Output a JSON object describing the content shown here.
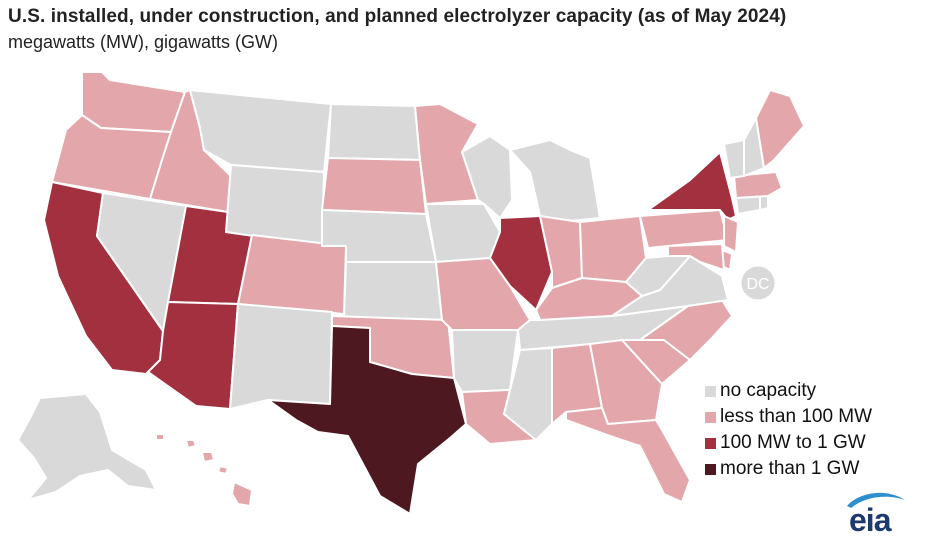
{
  "title": "U.S. installed, under construction, and planned electrolyzer capacity (as of May 2024)",
  "subtitle": "megawatts (MW), gigawatts (GW)",
  "colors": {
    "none": "#d9d9d9",
    "low": "#e3a6ab",
    "mid": "#a3303f",
    "high": "#4e1820",
    "border": "#ffffff",
    "logo": "#1d3a6e",
    "logo_accent": "#2e8fcf"
  },
  "legend": [
    {
      "key": "none",
      "label": "no capacity"
    },
    {
      "key": "low",
      "label": "less than 100 MW"
    },
    {
      "key": "mid",
      "label": "100 MW to 1 GW"
    },
    {
      "key": "high",
      "label": "more than 1 GW"
    }
  ],
  "states": {
    "WA": "low",
    "OR": "low",
    "CA": "mid",
    "ID": "low",
    "NV": "none",
    "UT": "mid",
    "AZ": "mid",
    "MT": "none",
    "WY": "none",
    "CO": "low",
    "NM": "none",
    "ND": "none",
    "SD": "low",
    "NE": "none",
    "KS": "none",
    "OK": "low",
    "TX": "high",
    "MN": "low",
    "IA": "none",
    "MO": "low",
    "AR": "none",
    "LA": "low",
    "WI": "none",
    "IL": "mid",
    "MI": "none",
    "IN": "low",
    "OH": "low",
    "KY": "low",
    "TN": "none",
    "MS": "none",
    "AL": "low",
    "GA": "low",
    "FL": "low",
    "SC": "low",
    "NC": "low",
    "VA": "none",
    "WV": "none",
    "PA": "low",
    "NY": "mid",
    "NJ": "low",
    "DE": "low",
    "MD": "low",
    "CT": "none",
    "RI": "none",
    "MA": "low",
    "VT": "none",
    "NH": "none",
    "ME": "low",
    "AK": "none",
    "HI": "low",
    "DC": "none"
  },
  "dc_label": "DC",
  "logo_text": "eia"
}
